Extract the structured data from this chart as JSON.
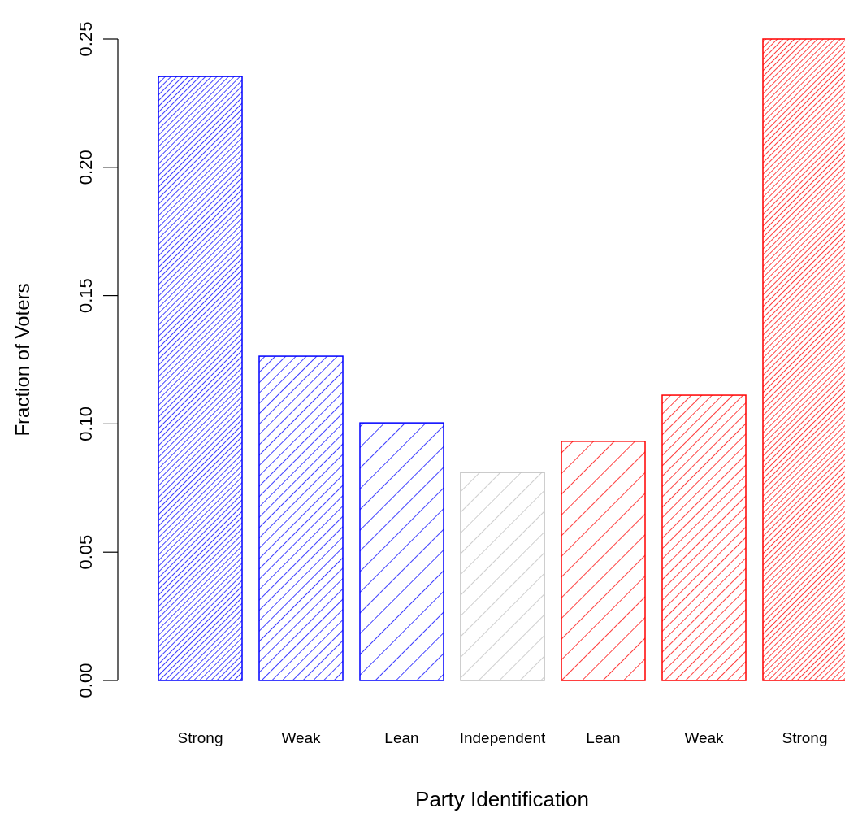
{
  "chart_data": {
    "type": "bar",
    "xlabel": "Party Identification",
    "ylabel": "Fraction of Voters",
    "categories": [
      "Strong",
      "Weak",
      "Lean",
      "Independent",
      "Lean",
      "Weak",
      "Strong"
    ],
    "values": [
      0.2354,
      0.1264,
      0.1004,
      0.0811,
      0.0932,
      0.1112,
      0.25
    ],
    "colors": [
      "#0000ff",
      "#0000ff",
      "#0000ff",
      "#bebebe",
      "#ff0000",
      "#ff0000",
      "#ff0000"
    ],
    "ylim": [
      0,
      0.25
    ],
    "yticks": [
      {
        "value": 0,
        "label": "0.00"
      },
      {
        "value": 0.05,
        "label": "0.05"
      },
      {
        "value": 0.1,
        "label": "0.10"
      },
      {
        "value": 0.15,
        "label": "0.15"
      },
      {
        "value": 0.2,
        "label": "0.20"
      },
      {
        "value": 0.25,
        "label": "0.25"
      }
    ]
  }
}
